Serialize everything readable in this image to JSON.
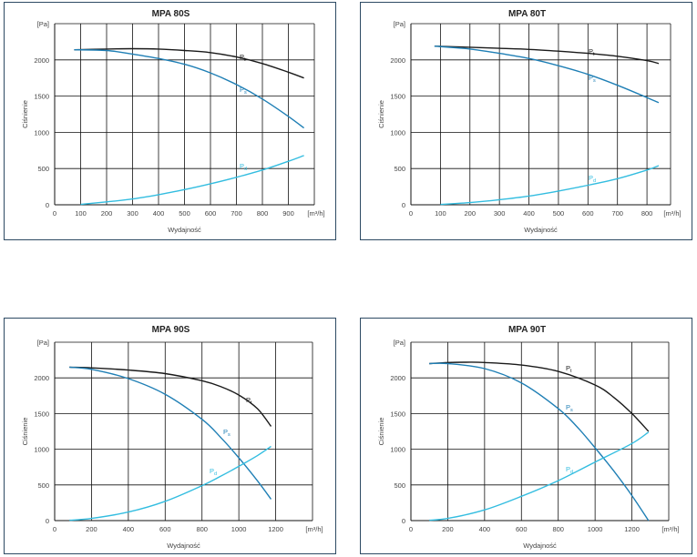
{
  "chart_data": [
    {
      "type": "line",
      "title": "MPA 80S",
      "xlabel": "Wydajność",
      "ylabel": "Ciśnienie",
      "x_unit": "[m³/h]",
      "y_unit": "[Pa]",
      "xlim": [
        0,
        1000
      ],
      "ylim": [
        0,
        2500
      ],
      "x_ticks": [
        "0",
        "100",
        "200",
        "300",
        "400",
        "500",
        "600",
        "700",
        "800",
        "900"
      ],
      "y_ticks": [
        "0",
        "500",
        "1000",
        "1500",
        "2000"
      ],
      "grid": true,
      "series": [
        {
          "name": "Pt",
          "color": "#1a1a1a",
          "x": [
            75,
            200,
            300,
            400,
            500,
            600,
            700,
            800,
            900,
            960
          ],
          "y": [
            2140,
            2150,
            2155,
            2150,
            2130,
            2100,
            2040,
            1950,
            1830,
            1750
          ]
        },
        {
          "name": "Ps",
          "color": "#1f7fb5",
          "x": [
            75,
            200,
            300,
            400,
            500,
            600,
            700,
            800,
            900,
            960
          ],
          "y": [
            2140,
            2130,
            2080,
            2020,
            1940,
            1820,
            1660,
            1460,
            1220,
            1060
          ]
        },
        {
          "name": "Pd",
          "color": "#33bde0",
          "x": [
            100,
            200,
            300,
            400,
            500,
            600,
            700,
            800,
            900,
            960
          ],
          "y": [
            5,
            40,
            80,
            140,
            210,
            290,
            380,
            480,
            600,
            680
          ]
        }
      ]
    },
    {
      "type": "line",
      "title": "MPA 80T",
      "xlabel": "Wydajność",
      "ylabel": "Ciśnienie",
      "x_unit": "[m³/h]",
      "y_unit": "[Pa]",
      "xlim": [
        0,
        880
      ],
      "ylim": [
        0,
        2500
      ],
      "x_ticks": [
        "0",
        "100",
        "200",
        "300",
        "400",
        "500",
        "600",
        "700",
        "800"
      ],
      "y_ticks": [
        "0",
        "500",
        "1000",
        "1500",
        "2000"
      ],
      "grid": true,
      "series": [
        {
          "name": "Pt",
          "color": "#1a1a1a",
          "x": [
            80,
            200,
            300,
            400,
            500,
            600,
            700,
            800,
            840
          ],
          "y": [
            2190,
            2175,
            2160,
            2145,
            2120,
            2090,
            2050,
            1990,
            1950
          ]
        },
        {
          "name": "Ps",
          "color": "#1f7fb5",
          "x": [
            80,
            200,
            300,
            400,
            500,
            600,
            700,
            800,
            840
          ],
          "y": [
            2190,
            2150,
            2090,
            2020,
            1920,
            1800,
            1650,
            1480,
            1410
          ]
        },
        {
          "name": "Pd",
          "color": "#33bde0",
          "x": [
            100,
            200,
            300,
            400,
            500,
            600,
            700,
            800,
            840
          ],
          "y": [
            5,
            30,
            70,
            120,
            190,
            270,
            360,
            480,
            540
          ]
        }
      ]
    },
    {
      "type": "line",
      "title": "MPA 90S",
      "xlabel": "Wydajność",
      "ylabel": "Ciśnienie",
      "x_unit": "[m³/h]",
      "y_unit": "[Pa]",
      "xlim": [
        0,
        1400
      ],
      "ylim": [
        0,
        2500
      ],
      "x_ticks": [
        "0",
        "200",
        "400",
        "600",
        "800",
        "1000",
        "1200"
      ],
      "y_ticks": [
        "0",
        "500",
        "1000",
        "1500",
        "2000"
      ],
      "grid": true,
      "series": [
        {
          "name": "Pt",
          "color": "#1a1a1a",
          "x": [
            80,
            200,
            400,
            600,
            800,
            900,
            1000,
            1100,
            1175
          ],
          "y": [
            2150,
            2140,
            2110,
            2060,
            1960,
            1880,
            1760,
            1570,
            1320
          ]
        },
        {
          "name": "Ps",
          "color": "#1f7fb5",
          "x": [
            80,
            200,
            400,
            600,
            800,
            900,
            1000,
            1100,
            1175
          ],
          "y": [
            2150,
            2120,
            1990,
            1770,
            1420,
            1170,
            880,
            560,
            300
          ]
        },
        {
          "name": "Pd",
          "color": "#33bde0",
          "x": [
            80,
            200,
            400,
            600,
            800,
            900,
            1000,
            1100,
            1175
          ],
          "y": [
            5,
            30,
            120,
            270,
            490,
            620,
            760,
            910,
            1040
          ]
        }
      ]
    },
    {
      "type": "line",
      "title": "MPA 90T",
      "xlabel": "Wydajność",
      "ylabel": "Ciśnienie",
      "x_unit": "[m³/h]",
      "y_unit": "[Pa]",
      "xlim": [
        0,
        1400
      ],
      "ylim": [
        0,
        2500
      ],
      "x_ticks": [
        "0",
        "200",
        "400",
        "600",
        "800",
        "1000",
        "1200"
      ],
      "y_ticks": [
        "0",
        "500",
        "1000",
        "1500",
        "2000"
      ],
      "grid": true,
      "series": [
        {
          "name": "Pt",
          "color": "#1a1a1a",
          "x": [
            100,
            200,
            300,
            400,
            600,
            800,
            1000,
            1100,
            1200,
            1290
          ],
          "y": [
            2200,
            2215,
            2220,
            2215,
            2180,
            2090,
            1900,
            1730,
            1500,
            1250
          ]
        },
        {
          "name": "Ps",
          "color": "#1f7fb5",
          "x": [
            100,
            200,
            400,
            600,
            800,
            900,
            1000,
            1100,
            1200,
            1290
          ],
          "y": [
            2200,
            2200,
            2130,
            1930,
            1570,
            1320,
            1020,
            700,
            350,
            0
          ]
        },
        {
          "name": "Pd",
          "color": "#33bde0",
          "x": [
            100,
            200,
            400,
            600,
            800,
            1000,
            1200,
            1290
          ],
          "y": [
            5,
            30,
            150,
            340,
            560,
            820,
            1080,
            1240
          ]
        }
      ]
    }
  ]
}
